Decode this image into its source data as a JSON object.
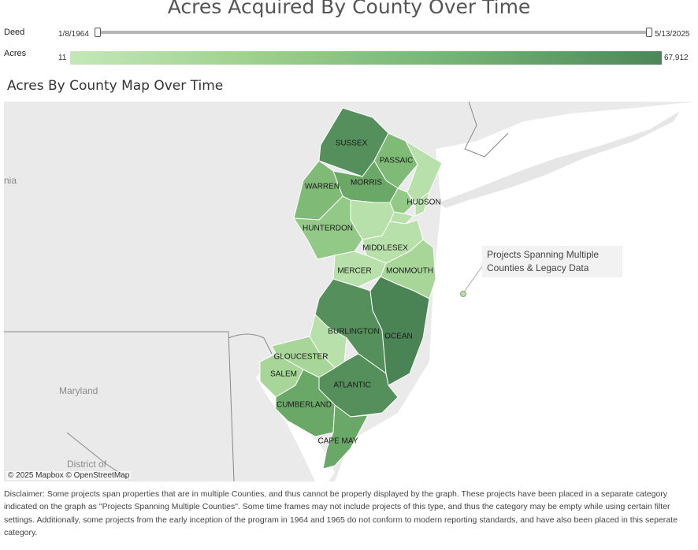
{
  "header": {
    "title": "Acres Acquired By County Over Time"
  },
  "filters": {
    "deed": {
      "label": "Deed",
      "start": "1/8/1964",
      "end": "5/13/2025"
    },
    "acres": {
      "label": "Acres",
      "min": "11",
      "max": "67,912"
    }
  },
  "map": {
    "subtitle": "Acres By County Map Over Time",
    "places": {
      "maryland": "Maryland",
      "district": "District of",
      "nia": "nia"
    },
    "attribution": "© 2025 Mapbox  © OpenStreetMap",
    "callout": "Projects Spanning Multiple Counties & Legacy Data",
    "colors": {
      "water": "#ffffff",
      "land": "#e8e8e8",
      "lightest": "#b8e0aa",
      "light": "#a7d698",
      "mid_light": "#93c987",
      "mid": "#7fbb76",
      "mid_dark": "#6aa867",
      "dark": "#55905c",
      "darkest": "#4a8454"
    },
    "counties": {
      "sussex": "SUSSEX",
      "passaic": "PASSAIC",
      "warren": "WARREN",
      "morris": "MORRIS",
      "hudson": "HUDSON",
      "hunterdon": "HUNTERDON",
      "middlesex": "MIDDLESEX",
      "mercer": "MERCER",
      "monmouth": "MONMOUTH",
      "burlington": "BURLINGTON",
      "ocean": "OCEAN",
      "gloucester": "GLOUCESTER",
      "salem": "SALEM",
      "atlantic": "ATLANTIC",
      "cumberland": "CUMBERLAND",
      "cape_may": "CAPE MAY"
    }
  },
  "disclaimer": "Disclaimer: Some projects span properties that are in multiple Counties, and thus cannot be properly displayed by the graph. These projects have been placed in a separate category indicated on the graph as \"Projects Spanning Multiple Counties\". Some time frames may not include projects of this type, and thus the category may be empty while using certain filter settings. Additionally, some projects from the early inception of the program in 1964 and 1965 do not conform to modern reporting standards, and have also been placed in this seperate category."
}
